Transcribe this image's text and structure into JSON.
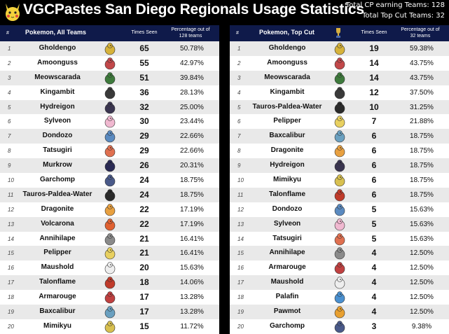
{
  "header": {
    "title": "VGCPastes San Diego Regionals Usage Statistics",
    "total_cp": "Total CP earning Teams: 128",
    "total_topcut": "Total Top Cut Teams: 32"
  },
  "left": {
    "col_num": "#",
    "col_name": "Pokemon, All Teams",
    "col_seen": "Times Seen",
    "col_pct": "Percentage out of 128 teams",
    "rows": [
      {
        "num": "1",
        "name": "Gholdengo",
        "seen": "65",
        "pct": "50.78%",
        "color": "#d6b23a"
      },
      {
        "num": "2",
        "name": "Amoonguss",
        "seen": "55",
        "pct": "42.97%",
        "color": "#c2484a"
      },
      {
        "num": "3",
        "name": "Meowscarada",
        "seen": "51",
        "pct": "39.84%",
        "color": "#3e7a3c"
      },
      {
        "num": "4",
        "name": "Kingambit",
        "seen": "36",
        "pct": "28.13%",
        "color": "#3a3a3a"
      },
      {
        "num": "5",
        "name": "Hydreigon",
        "seen": "32",
        "pct": "25.00%",
        "color": "#3a3550"
      },
      {
        "num": "6",
        "name": "Sylveon",
        "seen": "30",
        "pct": "23.44%",
        "color": "#f0b8d0"
      },
      {
        "num": "7",
        "name": "Dondozo",
        "seen": "29",
        "pct": "22.66%",
        "color": "#5a8ac0"
      },
      {
        "num": "8",
        "name": "Tatsugiri",
        "seen": "29",
        "pct": "22.66%",
        "color": "#e07050"
      },
      {
        "num": "9",
        "name": "Murkrow",
        "seen": "26",
        "pct": "20.31%",
        "color": "#2a2a55"
      },
      {
        "num": "10",
        "name": "Garchomp",
        "seen": "24",
        "pct": "18.75%",
        "color": "#4a5a8a"
      },
      {
        "num": "11",
        "name": "Tauros-Paldea-Water",
        "seen": "24",
        "pct": "18.75%",
        "color": "#2a2a2a"
      },
      {
        "num": "12",
        "name": "Dragonite",
        "seen": "22",
        "pct": "17.19%",
        "color": "#e8a040"
      },
      {
        "num": "13",
        "name": "Volcarona",
        "seen": "22",
        "pct": "17.19%",
        "color": "#e06030"
      },
      {
        "num": "14",
        "name": "Annihilape",
        "seen": "21",
        "pct": "16.41%",
        "color": "#8a8a8a"
      },
      {
        "num": "15",
        "name": "Pelipper",
        "seen": "21",
        "pct": "16.41%",
        "color": "#e8d060"
      },
      {
        "num": "16",
        "name": "Maushold",
        "seen": "20",
        "pct": "15.63%",
        "color": "#eeeeee"
      },
      {
        "num": "17",
        "name": "Talonflame",
        "seen": "18",
        "pct": "14.06%",
        "color": "#c03a2a"
      },
      {
        "num": "18",
        "name": "Armarouge",
        "seen": "17",
        "pct": "13.28%",
        "color": "#c04040"
      },
      {
        "num": "19",
        "name": "Baxcalibur",
        "seen": "17",
        "pct": "13.28%",
        "color": "#6aa0c0"
      },
      {
        "num": "20",
        "name": "Mimikyu",
        "seen": "15",
        "pct": "11.72%",
        "color": "#d8c050"
      }
    ]
  },
  "right": {
    "col_num": "#",
    "col_name": "Pokemon, Top Cut",
    "col_seen": "Times Seen",
    "col_pct": "Percentage out of 32 teams",
    "rows": [
      {
        "num": "1",
        "name": "Gholdengo",
        "seen": "19",
        "pct": "59.38%",
        "color": "#d6b23a"
      },
      {
        "num": "2",
        "name": "Amoonguss",
        "seen": "14",
        "pct": "43.75%",
        "color": "#c2484a"
      },
      {
        "num": "3",
        "name": "Meowscarada",
        "seen": "14",
        "pct": "43.75%",
        "color": "#3e7a3c"
      },
      {
        "num": "4",
        "name": "Kingambit",
        "seen": "12",
        "pct": "37.50%",
        "color": "#3a3a3a"
      },
      {
        "num": "5",
        "name": "Tauros-Paldea-Water",
        "seen": "10",
        "pct": "31.25%",
        "color": "#2a2a2a"
      },
      {
        "num": "6",
        "name": "Pelipper",
        "seen": "7",
        "pct": "21.88%",
        "color": "#e8d060"
      },
      {
        "num": "7",
        "name": "Baxcalibur",
        "seen": "6",
        "pct": "18.75%",
        "color": "#6aa0c0"
      },
      {
        "num": "8",
        "name": "Dragonite",
        "seen": "6",
        "pct": "18.75%",
        "color": "#e8a040"
      },
      {
        "num": "9",
        "name": "Hydreigon",
        "seen": "6",
        "pct": "18.75%",
        "color": "#3a3550"
      },
      {
        "num": "10",
        "name": "Mimikyu",
        "seen": "6",
        "pct": "18.75%",
        "color": "#d8c050"
      },
      {
        "num": "11",
        "name": "Talonflame",
        "seen": "6",
        "pct": "18.75%",
        "color": "#c03a2a"
      },
      {
        "num": "12",
        "name": "Dondozo",
        "seen": "5",
        "pct": "15.63%",
        "color": "#5a8ac0"
      },
      {
        "num": "13",
        "name": "Sylveon",
        "seen": "5",
        "pct": "15.63%",
        "color": "#f0b8d0"
      },
      {
        "num": "14",
        "name": "Tatsugiri",
        "seen": "5",
        "pct": "15.63%",
        "color": "#e07050"
      },
      {
        "num": "15",
        "name": "Annihilape",
        "seen": "4",
        "pct": "12.50%",
        "color": "#8a8a8a"
      },
      {
        "num": "16",
        "name": "Armarouge",
        "seen": "4",
        "pct": "12.50%",
        "color": "#c04040"
      },
      {
        "num": "17",
        "name": "Maushold",
        "seen": "4",
        "pct": "12.50%",
        "color": "#eeeeee"
      },
      {
        "num": "18",
        "name": "Palafin",
        "seen": "4",
        "pct": "12.50%",
        "color": "#4a90d0"
      },
      {
        "num": "19",
        "name": "Pawmot",
        "seen": "4",
        "pct": "12.50%",
        "color": "#e8a030"
      },
      {
        "num": "20",
        "name": "Garchomp",
        "seen": "3",
        "pct": "9.38%",
        "color": "#4a5a8a"
      }
    ]
  }
}
